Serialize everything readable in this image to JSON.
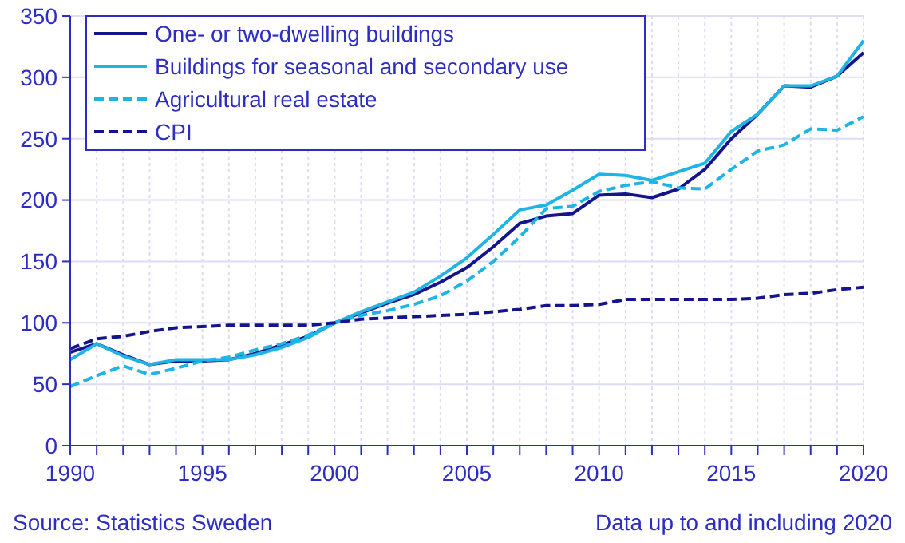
{
  "chart_data": {
    "type": "line",
    "x": [
      1990,
      1991,
      1992,
      1993,
      1994,
      1995,
      1996,
      1997,
      1998,
      1999,
      2000,
      2001,
      2002,
      2003,
      2004,
      2005,
      2006,
      2007,
      2008,
      2009,
      2010,
      2011,
      2012,
      2013,
      2014,
      2015,
      2016,
      2017,
      2018,
      2019,
      2020
    ],
    "series": [
      {
        "name": "One- or two-dwelling buildings",
        "color": "#14148c",
        "line_style": "solid",
        "values": [
          76,
          83,
          74,
          66,
          69,
          69,
          70,
          75,
          82,
          89,
          100,
          108,
          116,
          123,
          133,
          145,
          162,
          181,
          187,
          189,
          204,
          205,
          202,
          209,
          225,
          250,
          270,
          293,
          292,
          301,
          320
        ]
      },
      {
        "name": "Buildings for seasonal and secondary use",
        "color": "#1eb4e6",
        "line_style": "solid",
        "values": [
          70,
          83,
          73,
          66,
          70,
          70,
          70,
          74,
          80,
          88,
          100,
          109,
          117,
          125,
          138,
          153,
          172,
          192,
          196,
          208,
          221,
          220,
          216,
          223,
          230,
          256,
          270,
          293,
          293,
          301,
          330
        ]
      },
      {
        "name": "Agricultural real estate",
        "color": "#1eb4e6",
        "line_style": "dashed",
        "values": [
          48,
          57,
          65,
          58,
          63,
          69,
          72,
          78,
          83,
          90,
          100,
          106,
          110,
          115,
          122,
          134,
          150,
          170,
          193,
          195,
          207,
          212,
          215,
          210,
          209,
          225,
          240,
          245,
          258,
          257,
          268
        ]
      },
      {
        "name": "CPI",
        "color": "#14148c",
        "line_style": "dashed",
        "values": [
          79,
          87,
          89,
          93,
          96,
          97,
          98,
          98,
          98,
          98,
          100,
          103,
          104,
          105,
          106,
          107,
          109,
          111,
          114,
          114,
          115,
          119,
          119,
          119,
          119,
          119,
          120,
          123,
          124,
          127,
          129
        ]
      }
    ],
    "xlim": [
      1990,
      2020
    ],
    "xticks": [
      1990,
      {
        "value": 1991,
        "label": null
      },
      {
        "value": 1992,
        "label": null
      },
      {
        "value": 1993,
        "label": null
      },
      {
        "value": 1994,
        "label": null
      },
      1995,
      {
        "value": 1996,
        "label": null
      },
      {
        "value": 1997,
        "label": null
      },
      {
        "value": 1998,
        "label": null
      },
      {
        "value": 1999,
        "label": null
      },
      2000,
      {
        "value": 2001,
        "label": null
      },
      {
        "value": 2002,
        "label": null
      },
      {
        "value": 2003,
        "label": null
      },
      {
        "value": 2004,
        "label": null
      },
      2005,
      {
        "value": 2006,
        "label": null
      },
      {
        "value": 2007,
        "label": null
      },
      {
        "value": 2008,
        "label": null
      },
      {
        "value": 2009,
        "label": null
      },
      2010,
      {
        "value": 2011,
        "label": null
      },
      {
        "value": 2012,
        "label": null
      },
      {
        "value": 2013,
        "label": null
      },
      {
        "value": 2014,
        "label": null
      },
      2015,
      {
        "value": 2016,
        "label": null
      },
      {
        "value": 2017,
        "label": null
      },
      {
        "value": 2018,
        "label": null
      },
      {
        "value": 2019,
        "label": null
      },
      2020
    ],
    "ylim": [
      0,
      350
    ],
    "yticks": [
      0,
      50,
      100,
      150,
      200,
      250,
      300,
      350
    ],
    "grid": true,
    "legend": "top left",
    "marker": "none",
    "annotations": [
      "Source: Statistics Sweden",
      "Data up to and including 2020"
    ]
  }
}
